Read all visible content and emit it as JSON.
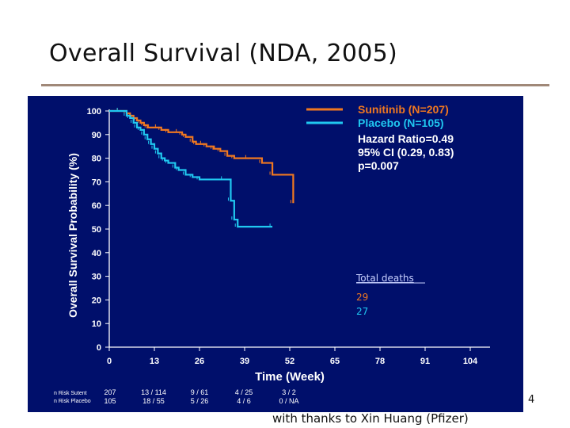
{
  "slide": {
    "title": "Overall Survival (NDA, 2005)",
    "footer": "with thanks to Xin Huang (Pfizer)",
    "page_number": "4"
  },
  "colors": {
    "background": "#000f6b",
    "sunitinib": "#f07820",
    "placebo": "#20c8f0",
    "text": "#ffffff",
    "total_deaths_label": "#c8d0ff"
  },
  "chart_data": {
    "type": "line",
    "xlabel": "Time (Week)",
    "ylabel": "Overall Survival Probability (%)",
    "xlim": [
      0,
      104
    ],
    "ylim": [
      0,
      100
    ],
    "x_ticks": [
      "0",
      "13",
      "26",
      "39",
      "52",
      "65",
      "78",
      "91",
      "104"
    ],
    "y_ticks": [
      "0",
      "10",
      "20",
      "30",
      "40",
      "50",
      "60",
      "70",
      "80",
      "90",
      "100"
    ],
    "series": [
      {
        "name": "Sunitinib (N=207)",
        "color": "#f07820",
        "x": [
          0,
          3,
          5,
          6,
          7,
          8,
          9,
          10,
          11,
          12,
          14,
          15,
          17,
          20,
          21,
          22,
          24,
          25,
          27,
          28,
          30,
          31,
          32,
          34,
          36,
          40,
          44,
          47,
          53
        ],
        "y": [
          100,
          100,
          99,
          98,
          97,
          96,
          95,
          94,
          93,
          93,
          93,
          92,
          91,
          91,
          90,
          89,
          87,
          86,
          86,
          85,
          84,
          84,
          83,
          81,
          80,
          80,
          78,
          73,
          61
        ]
      },
      {
        "name": "Placebo (N=105)",
        "color": "#20c8f0",
        "x": [
          0,
          3,
          5,
          6,
          7,
          8,
          9,
          10,
          11,
          12,
          13,
          14,
          15,
          16,
          17,
          19,
          20,
          22,
          24,
          26,
          33,
          35,
          36,
          37,
          47
        ],
        "y": [
          100,
          100,
          98,
          97,
          95,
          93,
          92,
          90,
          88,
          86,
          84,
          82,
          80,
          79,
          78,
          76,
          75,
          73,
          72,
          71,
          71,
          62,
          54,
          51,
          51
        ]
      }
    ],
    "annotations": [
      "Hazard Ratio=0.49",
      "95% CI (0.29, 0.83)",
      "p=0.007"
    ],
    "legend_position": "top-right",
    "total_deaths": {
      "label": "Total deaths",
      "values": [
        {
          "value": "29",
          "color": "#f07820"
        },
        {
          "value": "27",
          "color": "#20c8f0"
        }
      ]
    },
    "at_risk": {
      "labels": [
        "n Risk Sutent",
        "n Risk Placebo"
      ],
      "sunitinib": [
        "207",
        "13 / 114",
        "9 / 61",
        "4 / 25",
        "3 / 2"
      ],
      "placebo": [
        "105",
        "18 / 55",
        "5 / 26",
        "4 / 6",
        "0 / NA"
      ]
    }
  }
}
